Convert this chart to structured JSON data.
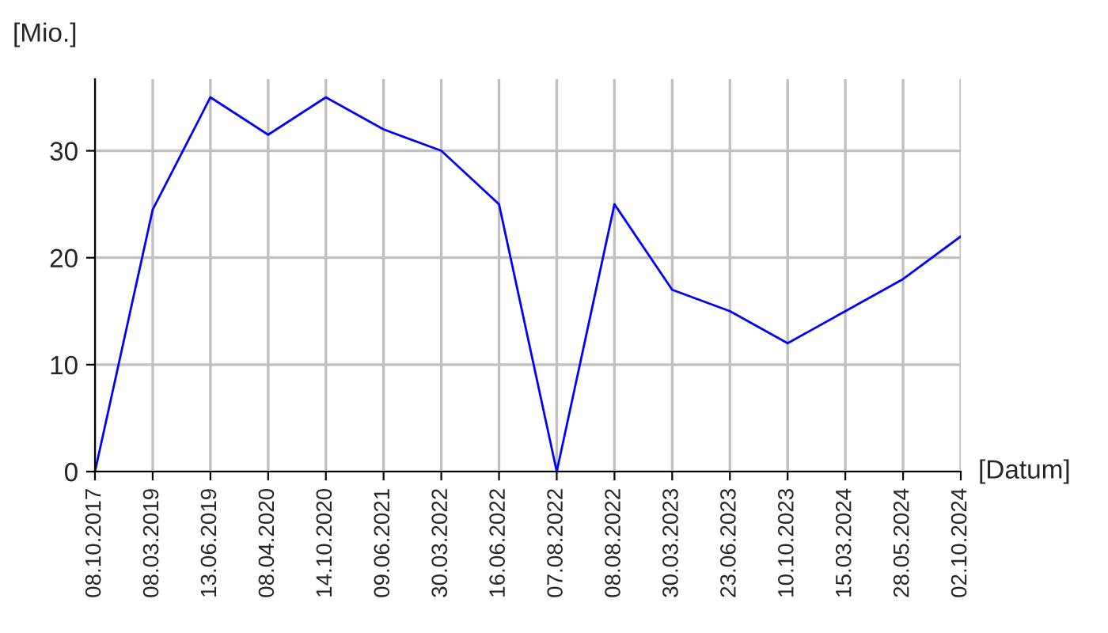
{
  "chart_data": {
    "type": "line",
    "ylabel": "[Mio.]",
    "xlabel": "[Datum]",
    "categories": [
      "08.10.2017",
      "08.03.2019",
      "13.06.2019",
      "08.04.2020",
      "14.10.2020",
      "09.06.2021",
      "30.03.2022",
      "16.06.2022",
      "07.08.2022",
      "08.08.2022",
      "30.03.2023",
      "23.06.2023",
      "10.10.2023",
      "15.03.2024",
      "28.05.2024",
      "02.10.2024"
    ],
    "series": [
      {
        "color": "#0000ff",
        "values": [
          0,
          24.5,
          35,
          31.5,
          35,
          32,
          30,
          25,
          0,
          25,
          17,
          15,
          12,
          15,
          18,
          22
        ]
      }
    ],
    "ylim": [
      0,
      36.7
    ],
    "yticks": [
      0,
      10,
      20,
      30
    ],
    "grid": true,
    "marker": "none",
    "line_style": "solid"
  }
}
